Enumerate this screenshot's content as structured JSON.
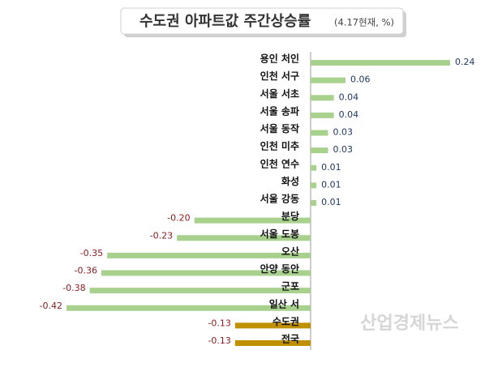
{
  "chart_data": {
    "type": "bar",
    "orientation": "horizontal",
    "title": "수도권 아파트값 주간상승률",
    "subtitle": "(4.17현재, %)",
    "categories": [
      "용인 처인",
      "인천 서구",
      "서울 서초",
      "서울 송파",
      "서울 동작",
      "인천 미추",
      "인천 연수",
      "화성",
      "서울 강동",
      "분당",
      "서울 도봉",
      "오산",
      "안양 동안",
      "군포",
      "일산 서",
      "수도권",
      "전국"
    ],
    "values": [
      0.24,
      0.06,
      0.04,
      0.04,
      0.03,
      0.03,
      0.01,
      0.01,
      0.01,
      -0.2,
      -0.23,
      -0.35,
      -0.36,
      -0.38,
      -0.42,
      -0.13,
      -0.13
    ],
    "value_labels": [
      "0.24",
      "0.06",
      "0.04",
      "0.04",
      "0.03",
      "0.03",
      "0.01",
      "0.01",
      "0.01",
      "-0.20",
      "-0.23",
      "-0.35",
      "-0.36",
      "-0.38",
      "-0.42",
      "-0.13",
      "-0.13"
    ],
    "colors": [
      "#a9d18e",
      "#a9d18e",
      "#a9d18e",
      "#a9d18e",
      "#a9d18e",
      "#a9d18e",
      "#a9d18e",
      "#a9d18e",
      "#a9d18e",
      "#a9d18e",
      "#a9d18e",
      "#a9d18e",
      "#a9d18e",
      "#a9d18e",
      "#a9d18e",
      "#bf9000",
      "#bf9000"
    ],
    "positive_label_color": "#1f3864",
    "negative_label_color": "#8b1a1a",
    "watermark": "산업경제뉴스"
  }
}
